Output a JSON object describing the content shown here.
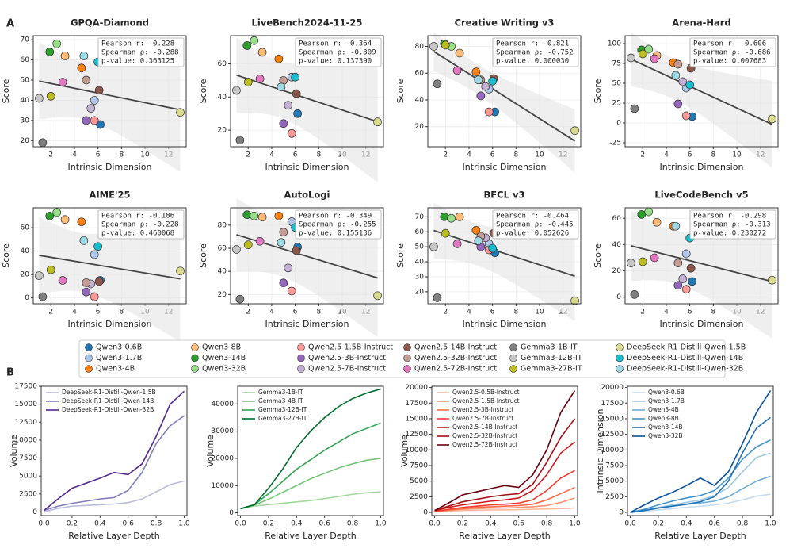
{
  "panel_labels": [
    "A",
    "B"
  ],
  "legend": {
    "series": [
      {
        "name": "Qwen3-0.6B",
        "color": "#1f77b4"
      },
      {
        "name": "Qwen3-1.7B",
        "color": "#aec7e8"
      },
      {
        "name": "Qwen3-4B",
        "color": "#ff7f0e"
      },
      {
        "name": "Qwen3-8B",
        "color": "#ffbb78"
      },
      {
        "name": "Qwen3-14B",
        "color": "#2ca02c"
      },
      {
        "name": "Qwen3-32B",
        "color": "#98df8a"
      },
      {
        "name": "Qwen2.5-1.5B-Instruct",
        "color": "#ff9896"
      },
      {
        "name": "Qwen2.5-3B-Instruct",
        "color": "#9467bd"
      },
      {
        "name": "Qwen2.5-7B-Instruct",
        "color": "#c5b0d5"
      },
      {
        "name": "Qwen2.5-14B-Instruct",
        "color": "#8c564b"
      },
      {
        "name": "Qwen2.5-32B-Instruct",
        "color": "#c49c94"
      },
      {
        "name": "Qwen2.5-72B-Instruct",
        "color": "#e377c2"
      },
      {
        "name": "Gemma3-1B-IT",
        "color": "#7f7f7f"
      },
      {
        "name": "Gemma3-12B-IT",
        "color": "#c7c7c7"
      },
      {
        "name": "Gemma3-27B-IT",
        "color": "#bcbd22"
      },
      {
        "name": "DeepSeek-R1-Distill-Qwen-1.5B",
        "color": "#dbdb8d"
      },
      {
        "name": "DeepSeek-R1-Distill-Qwen-14B",
        "color": "#17becf"
      },
      {
        "name": "DeepSeek-R1-Distill-Qwen-32B",
        "color": "#9edae5"
      }
    ]
  },
  "chart_data": [
    {
      "type": "scatter",
      "title": "GPQA-Diamond",
      "x_label": "Intrinsic Dimension",
      "y_label": "Score",
      "annotations": [
        "Pearson r: -0.228",
        "Spearman ρ: -0.288",
        "p-value: 0.363125"
      ],
      "x": [
        6.2,
        5.7,
        4.6,
        3.2,
        1.9,
        2.5,
        5.7,
        5.0,
        5.4,
        6.1,
        5.0,
        3.0,
        1.3,
        1.0,
        2.0,
        13.0,
        6.0,
        4.8
      ],
      "values": [
        28,
        40,
        56,
        62,
        64,
        68,
        30,
        30,
        36,
        45,
        50,
        49,
        19,
        41,
        42,
        34,
        59,
        62
      ],
      "xlim": [
        0.5,
        13.5
      ],
      "xticks": [
        2,
        4,
        6,
        8,
        10,
        12
      ],
      "ylim": [
        17,
        72
      ],
      "yticks": [
        20,
        30,
        40,
        50,
        60,
        70
      ],
      "grid": true
    },
    {
      "type": "scatter",
      "title": "LiveBench2024-11-25",
      "x_label": "Intrinsic Dimension",
      "y_label": "Score",
      "annotations": [
        "Pearson r: -0.364",
        "Spearman ρ: -0.309",
        "p-value: 0.137390"
      ],
      "x": [
        6.2,
        5.7,
        4.6,
        3.2,
        1.9,
        2.5,
        5.7,
        5.0,
        5.4,
        6.1,
        5.0,
        3.0,
        1.3,
        1.0,
        2.0,
        13.0,
        6.0,
        4.8
      ],
      "values": [
        30,
        52,
        63,
        67,
        71,
        74,
        18,
        24,
        35,
        42,
        50,
        51,
        14,
        44,
        49,
        25,
        52,
        46
      ],
      "xlim": [
        0.5,
        13.5
      ],
      "xticks": [
        2,
        4,
        6,
        8,
        10,
        12
      ],
      "ylim": [
        10,
        77
      ],
      "yticks": [
        20,
        40,
        60
      ],
      "grid": true
    },
    {
      "type": "scatter",
      "title": "Creative Writing v3",
      "x_label": "Intrinsic Dimension",
      "y_label": "Score",
      "annotations": [
        "Pearson r: -0.821",
        "Spearman ρ: -0.752",
        "p-value: 0.000030"
      ],
      "x": [
        6.2,
        5.7,
        4.6,
        3.2,
        1.9,
        2.5,
        5.7,
        5.0,
        5.4,
        6.1,
        5.0,
        3.0,
        1.3,
        1.0,
        2.0,
        13.0,
        6.0,
        4.8
      ],
      "values": [
        31,
        48,
        61,
        75,
        82,
        80,
        31,
        43,
        50,
        56,
        55,
        62,
        52,
        80,
        81,
        17,
        54,
        55
      ],
      "xlim": [
        0.5,
        13.5
      ],
      "xticks": [
        2,
        4,
        6,
        8,
        10,
        12
      ],
      "ylim": [
        5,
        88
      ],
      "yticks": [
        20,
        40,
        60,
        80
      ],
      "grid": true
    },
    {
      "type": "scatter",
      "title": "Arena-Hard",
      "x_label": "Intrinsic Dimension",
      "y_label": "Score",
      "annotations": [
        "Pearson r: -0.606",
        "Spearman ρ: -0.686",
        "p-value: 0.007683"
      ],
      "x": [
        6.2,
        5.7,
        4.6,
        3.2,
        1.9,
        2.5,
        5.7,
        5.0,
        5.4,
        6.1,
        5.0,
        3.0,
        1.3,
        1.0,
        2.0,
        13.0,
        6.0,
        4.8
      ],
      "values": [
        8,
        44,
        76,
        85,
        92,
        93,
        9,
        24,
        52,
        69,
        74,
        81,
        18,
        82,
        87,
        5,
        48,
        60
      ],
      "xlim": [
        0.5,
        13.5
      ],
      "xticks": [
        2,
        4,
        6,
        8,
        10,
        12
      ],
      "ylim": [
        -30,
        110
      ],
      "yticks": [
        -25,
        0,
        25,
        50,
        75,
        100
      ],
      "grid": true
    },
    {
      "type": "scatter",
      "title": "AIME'25",
      "x_label": "Intrinsic Dimension",
      "y_label": "Score",
      "annotations": [
        "Pearson r: -0.186",
        "Spearman ρ: -0.228",
        "p-value: 0.460068"
      ],
      "x": [
        6.2,
        5.7,
        4.6,
        3.2,
        1.9,
        2.5,
        5.7,
        5.0,
        5.4,
        6.1,
        5.0,
        3.0,
        1.3,
        1.0,
        2.0,
        13.0,
        6.0,
        4.8
      ],
      "values": [
        15,
        37,
        65,
        67,
        70,
        73,
        1,
        5,
        12,
        14,
        13,
        15,
        1,
        19,
        24,
        23,
        44,
        49
      ],
      "xlim": [
        0.5,
        13.5
      ],
      "xticks": [
        2,
        4,
        6,
        8,
        10,
        12
      ],
      "ylim": [
        -5,
        77
      ],
      "yticks": [
        0,
        20,
        40,
        60
      ],
      "grid": true
    },
    {
      "type": "scatter",
      "title": "AutoLogi",
      "x_label": "Intrinsic Dimension",
      "y_label": "Score",
      "annotations": [
        "Pearson r: -0.349",
        "Spearman ρ: -0.255",
        "p-value: 0.155136"
      ],
      "x": [
        6.2,
        5.7,
        4.6,
        3.2,
        1.9,
        2.5,
        5.7,
        5.0,
        5.4,
        6.1,
        5.0,
        3.0,
        1.3,
        1.0,
        2.0,
        13.0,
        6.0,
        4.8
      ],
      "values": [
        61,
        83,
        88,
        87,
        89,
        88,
        23,
        30,
        43,
        58,
        74,
        66,
        16,
        59,
        63,
        19,
        78,
        65
      ],
      "xlim": [
        0.5,
        13.5
      ],
      "xticks": [
        2,
        4,
        6,
        8,
        10,
        12
      ],
      "ylim": [
        12,
        95
      ],
      "yticks": [
        20,
        40,
        60,
        80
      ],
      "grid": true
    },
    {
      "type": "scatter",
      "title": "BFCL v3",
      "x_label": "Intrinsic Dimension",
      "y_label": "Score",
      "annotations": [
        "Pearson r: -0.464",
        "Spearman ρ: -0.445",
        "p-value: 0.052626"
      ],
      "x": [
        6.2,
        5.7,
        4.6,
        3.2,
        1.9,
        2.5,
        5.7,
        5.0,
        5.4,
        6.1,
        5.0,
        3.0,
        1.3,
        1.0,
        2.0,
        13.0,
        6.0,
        4.8
      ],
      "values": [
        46,
        52,
        61,
        70,
        70,
        69,
        48,
        50,
        56,
        59,
        57,
        52,
        16,
        50,
        59,
        14,
        49,
        54
      ],
      "xlim": [
        0.5,
        13.5
      ],
      "xticks": [
        2,
        4,
        6,
        8,
        10,
        12
      ],
      "ylim": [
        12,
        76
      ],
      "yticks": [
        20,
        30,
        40,
        50,
        60,
        70
      ],
      "grid": true
    },
    {
      "type": "scatter",
      "title": "LiveCodeBench v5",
      "x_label": "Intrinsic Dimension",
      "y_label": "Score",
      "annotations": [
        "Pearson r: -0.298",
        "Spearman ρ: -0.313",
        "p-value: 0.230272"
      ],
      "x": [
        6.2,
        5.7,
        4.6,
        3.2,
        1.9,
        2.5,
        5.7,
        5.0,
        5.4,
        6.1,
        5.0,
        3.0,
        1.3,
        1.0,
        2.0,
        13.0,
        6.0,
        4.8
      ],
      "values": [
        12,
        33,
        54,
        57,
        63,
        65,
        6,
        9,
        14,
        22,
        26,
        30,
        2,
        26,
        27,
        13,
        45,
        54
      ],
      "xlim": [
        0.5,
        13.5
      ],
      "xticks": [
        2,
        4,
        6,
        8,
        10,
        12
      ],
      "ylim": [
        -5,
        68
      ],
      "yticks": [
        0,
        20,
        40,
        60
      ],
      "grid": true
    },
    {
      "type": "line",
      "x_label": "Relative Layer Depth",
      "y_label": "Volume",
      "x": [
        0,
        0.1,
        0.2,
        0.3,
        0.4,
        0.5,
        0.6,
        0.7,
        0.8,
        0.9,
        1
      ],
      "series": [
        {
          "name": "DeepSeek-R1-Distill-Qwen-1.5B",
          "color": "#bcbddc",
          "values": [
            0,
            500,
            800,
            900,
            1000,
            1100,
            1300,
            1800,
            2800,
            3800,
            4300
          ]
        },
        {
          "name": "DeepSeek-R1-Distill-Qwen-14B",
          "color": "#807dba",
          "values": [
            200,
            800,
            1200,
            1500,
            1800,
            2000,
            3000,
            5500,
            9500,
            12000,
            13400
          ]
        },
        {
          "name": "DeepSeek-R1-Distill-Qwen-32B",
          "color": "#54278f",
          "values": [
            200,
            1800,
            3300,
            4000,
            4700,
            5500,
            5200,
            6700,
            10500,
            15000,
            16800
          ]
        }
      ],
      "xlim": [
        -0.02,
        1.02
      ],
      "xticks": [
        {
          "value": 0,
          "label": "0.0"
        },
        0.2,
        0.4,
        0.6,
        0.8,
        {
          "value": 1,
          "label": "1.0"
        }
      ],
      "ylim": [
        -500,
        17500
      ],
      "yticks": [
        0,
        2500,
        5000,
        7500,
        10000,
        12500,
        15000,
        17500
      ]
    },
    {
      "type": "line",
      "x_label": "Relative Layer Depth",
      "y_label": "Volume",
      "x": [
        0,
        0.1,
        0.2,
        0.3,
        0.4,
        0.5,
        0.6,
        0.7,
        0.8,
        0.9,
        1
      ],
      "series": [
        {
          "name": "Gemma3-1B-IT",
          "color": "#a1d99b",
          "values": [
            1500,
            2500,
            3000,
            3500,
            4000,
            4500,
            5200,
            6000,
            6800,
            7400,
            7700
          ]
        },
        {
          "name": "Gemma3-4B-IT",
          "color": "#74c476",
          "values": [
            1500,
            2800,
            5000,
            7500,
            10000,
            12500,
            14500,
            16500,
            18000,
            19300,
            20000
          ]
        },
        {
          "name": "Gemma3-12B-IT",
          "color": "#31a354",
          "values": [
            1500,
            3000,
            7000,
            11500,
            16000,
            19500,
            23000,
            26000,
            29000,
            31000,
            33000
          ]
        },
        {
          "name": "Gemma3-27B-IT",
          "color": "#006d2c",
          "values": [
            1500,
            3000,
            9000,
            16000,
            24000,
            30000,
            35000,
            39000,
            42000,
            44000,
            45500
          ]
        }
      ],
      "xlim": [
        -0.02,
        1.02
      ],
      "xticks": [
        {
          "value": 0,
          "label": "0.0"
        },
        0.2,
        0.4,
        0.6,
        0.8,
        {
          "value": 1,
          "label": "1.0"
        }
      ],
      "ylim": [
        -1000,
        46500
      ],
      "yticks": [
        0,
        10000,
        20000,
        30000,
        40000
      ]
    },
    {
      "type": "line",
      "x_label": "Relative Layer Depth",
      "y_label": "Volume",
      "x": [
        0,
        0.1,
        0.2,
        0.3,
        0.4,
        0.5,
        0.6,
        0.7,
        0.8,
        0.9,
        1
      ],
      "series": [
        {
          "name": "Qwen2.5-0.5B-Instruct",
          "color": "#fcbba1",
          "values": [
            100,
            200,
            300,
            350,
            400,
            400,
            450,
            500,
            550,
            600,
            700
          ]
        },
        {
          "name": "Qwen2.5-1.5B-Instruct",
          "color": "#fc9272",
          "values": [
            100,
            300,
            500,
            600,
            700,
            700,
            800,
            900,
            1100,
            1600,
            2300
          ]
        },
        {
          "name": "Qwen2.5-3B-Instruct",
          "color": "#fb6a4a",
          "values": [
            100,
            400,
            600,
            800,
            900,
            1000,
            1100,
            1300,
            2000,
            3000,
            4000
          ]
        },
        {
          "name": "Qwen2.5-7B-Instruct",
          "color": "#ef3b2c",
          "values": [
            200,
            500,
            800,
            1000,
            1200,
            1300,
            1500,
            2000,
            3500,
            5500,
            6700
          ]
        },
        {
          "name": "Qwen2.5-14B-Instruct",
          "color": "#cb181d",
          "values": [
            300,
            800,
            1200,
            1500,
            1800,
            2000,
            2300,
            3500,
            6000,
            9500,
            11300
          ]
        },
        {
          "name": "Qwen2.5-32B-Instruct",
          "color": "#a50f15",
          "values": [
            300,
            1000,
            1700,
            2100,
            2500,
            2800,
            3000,
            4500,
            8000,
            12000,
            15000
          ]
        },
        {
          "name": "Qwen2.5-72B-Instruct",
          "color": "#67000d",
          "values": [
            300,
            1500,
            2800,
            3300,
            3800,
            4300,
            4000,
            6000,
            10000,
            16000,
            19500
          ]
        }
      ],
      "xlim": [
        -0.02,
        1.02
      ],
      "xticks": [
        {
          "value": 0,
          "label": "0.0"
        },
        0.2,
        0.4,
        0.6,
        0.8,
        {
          "value": 1,
          "label": "1.0"
        }
      ],
      "ylim": [
        -500,
        20200
      ],
      "yticks": [
        0,
        2500,
        5000,
        7500,
        10000,
        12500,
        15000,
        17500,
        20000
      ]
    },
    {
      "type": "line",
      "x_label": "Relative Layer Depth",
      "y_label": "Intrinsic Dimension",
      "x": [
        0,
        0.1,
        0.2,
        0.3,
        0.4,
        0.5,
        0.6,
        0.7,
        0.8,
        0.9,
        1
      ],
      "series": [
        {
          "name": "Qwen3-0.6B",
          "color": "#c6dbef",
          "values": [
            0,
            200,
            400,
            600,
            800,
            1000,
            1200,
            1500,
            2000,
            2600,
            2900
          ]
        },
        {
          "name": "Qwen3-1.7B",
          "color": "#9ecae1",
          "values": [
            0,
            400,
            800,
            1200,
            1600,
            2000,
            2700,
            4000,
            6500,
            8800,
            9500
          ]
        },
        {
          "name": "Qwen3-4B",
          "color": "#6baed6",
          "values": [
            0,
            300,
            700,
            1000,
            1300,
            1500,
            1800,
            2500,
            3800,
            5000,
            5800
          ]
        },
        {
          "name": "Qwen3-8B",
          "color": "#4292c6",
          "values": [
            0,
            500,
            1200,
            1800,
            2300,
            2700,
            3500,
            5500,
            8500,
            10500,
            11600
          ]
        },
        {
          "name": "Qwen3-14B",
          "color": "#2171b5",
          "values": [
            0,
            300,
            700,
            1000,
            1300,
            1700,
            2500,
            5000,
            9500,
            13500,
            15200
          ]
        },
        {
          "name": "Qwen3-32B",
          "color": "#08519c",
          "values": [
            0,
            1200,
            2300,
            3200,
            4300,
            5500,
            4300,
            6500,
            11000,
            16000,
            19500
          ]
        }
      ],
      "xlim": [
        -0.02,
        1.02
      ],
      "xticks": [
        {
          "value": 0,
          "label": "0.0"
        },
        0.2,
        0.4,
        0.6,
        0.8,
        {
          "value": 1,
          "label": "1.0"
        }
      ],
      "ylim": [
        -500,
        20200
      ],
      "yticks": [
        0,
        2500,
        5000,
        7500,
        10000,
        12500,
        15000,
        17500,
        20000
      ]
    }
  ]
}
